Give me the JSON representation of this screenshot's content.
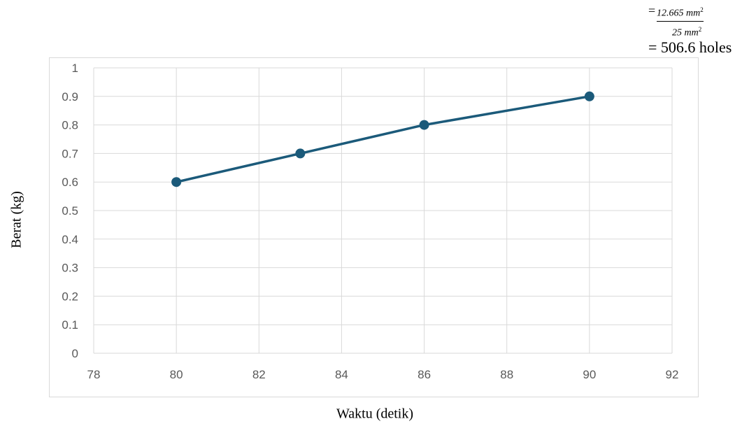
{
  "formula": {
    "equals": "=",
    "numerator_value": "12.665",
    "numerator_unit": "mm",
    "numerator_exp": "2",
    "denominator_value": "25",
    "denominator_unit": "mm",
    "denominator_exp": "2",
    "result": "= 506.6 holes"
  },
  "chart_data": {
    "type": "scatter",
    "title": "",
    "xlabel": "Waktu (detik)",
    "ylabel": "Berat (kg)",
    "xlim": [
      78,
      92
    ],
    "ylim": [
      0,
      1
    ],
    "x_ticks": [
      "78",
      "80",
      "82",
      "84",
      "86",
      "88",
      "90",
      "92"
    ],
    "y_ticks": [
      "0",
      "0.1",
      "0.2",
      "0.3",
      "0.4",
      "0.5",
      "0.6",
      "0.7",
      "0.8",
      "0.9",
      "1"
    ],
    "grid": true,
    "legend": "none",
    "series": [
      {
        "x": [
          80,
          83,
          86,
          90
        ],
        "y": [
          0.6,
          0.7,
          0.8,
          0.9
        ],
        "color": "#1b5a7a",
        "style": "line-with-markers"
      }
    ]
  }
}
